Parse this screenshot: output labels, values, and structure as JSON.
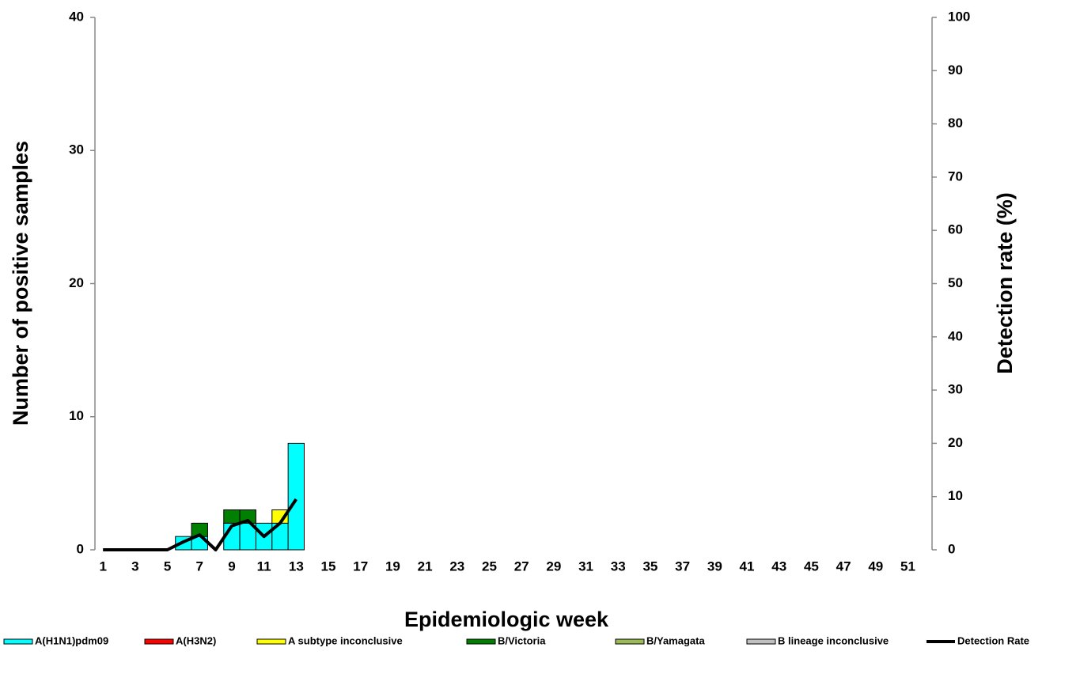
{
  "chart_data": {
    "type": "bar",
    "stacked": true,
    "xlabel": "Epidemiologic week",
    "ylabel": "Number of positive samples",
    "y2label": "Detection rate (%)",
    "categories": [
      1,
      null,
      3,
      null,
      5,
      null,
      7,
      null,
      9,
      null,
      11,
      null,
      13,
      null,
      15,
      null,
      17,
      null,
      19,
      null,
      21,
      null,
      23,
      null,
      25,
      null,
      27,
      null,
      29,
      null,
      31,
      null,
      33,
      null,
      35,
      null,
      37,
      null,
      39,
      null,
      41,
      null,
      43,
      null,
      45,
      null,
      47,
      null,
      49,
      null,
      51,
      null
    ],
    "ylim": [
      0,
      40
    ],
    "yticks": [
      0,
      10,
      20,
      30,
      40
    ],
    "y2lim": [
      0,
      100
    ],
    "y2ticks": [
      0,
      10,
      20,
      30,
      40,
      50,
      60,
      70,
      80,
      90,
      100
    ],
    "series": [
      {
        "name": "A(H1N1)pdm09",
        "type": "bar",
        "color": "#00ffff",
        "values": [
          0,
          0,
          0,
          0,
          0,
          1,
          1,
          0,
          2,
          2,
          2,
          2,
          8,
          null,
          null,
          null,
          null,
          null,
          null,
          null,
          null,
          null,
          null,
          null,
          null,
          null,
          null,
          null,
          null,
          null,
          null,
          null,
          null,
          null,
          null,
          null,
          null,
          null,
          null,
          null,
          null,
          null,
          null,
          null,
          null,
          null,
          null,
          null,
          null,
          null,
          null,
          null
        ]
      },
      {
        "name": "A(H3N2)",
        "type": "bar",
        "color": "#ff0000",
        "values": [
          0,
          0,
          0,
          0,
          0,
          0,
          0,
          0,
          0,
          0,
          0,
          0,
          0,
          null,
          null,
          null,
          null,
          null,
          null,
          null,
          null,
          null,
          null,
          null,
          null,
          null,
          null,
          null,
          null,
          null,
          null,
          null,
          null,
          null,
          null,
          null,
          null,
          null,
          null,
          null,
          null,
          null,
          null,
          null,
          null,
          null,
          null,
          null,
          null,
          null,
          null,
          null
        ]
      },
      {
        "name": "A subtype inconclusive",
        "type": "bar",
        "color": "#ffff00",
        "values": [
          0,
          0,
          0,
          0,
          0,
          0,
          0,
          0,
          0,
          0,
          0,
          1,
          0,
          null,
          null,
          null,
          null,
          null,
          null,
          null,
          null,
          null,
          null,
          null,
          null,
          null,
          null,
          null,
          null,
          null,
          null,
          null,
          null,
          null,
          null,
          null,
          null,
          null,
          null,
          null,
          null,
          null,
          null,
          null,
          null,
          null,
          null,
          null,
          null,
          null,
          null,
          null
        ]
      },
      {
        "name": "B/Victoria",
        "type": "bar",
        "color": "#008000",
        "values": [
          0,
          0,
          0,
          0,
          0,
          0,
          1,
          0,
          1,
          1,
          0,
          0,
          0,
          null,
          null,
          null,
          null,
          null,
          null,
          null,
          null,
          null,
          null,
          null,
          null,
          null,
          null,
          null,
          null,
          null,
          null,
          null,
          null,
          null,
          null,
          null,
          null,
          null,
          null,
          null,
          null,
          null,
          null,
          null,
          null,
          null,
          null,
          null,
          null,
          null,
          null,
          null
        ]
      },
      {
        "name": "B/Yamagata",
        "type": "bar",
        "color": "#9bbb59",
        "values": [
          0,
          0,
          0,
          0,
          0,
          0,
          0,
          0,
          0,
          0,
          0,
          0,
          0,
          null,
          null,
          null,
          null,
          null,
          null,
          null,
          null,
          null,
          null,
          null,
          null,
          null,
          null,
          null,
          null,
          null,
          null,
          null,
          null,
          null,
          null,
          null,
          null,
          null,
          null,
          null,
          null,
          null,
          null,
          null,
          null,
          null,
          null,
          null,
          null,
          null,
          null,
          null
        ]
      },
      {
        "name": "B lineage inconclusive",
        "type": "bar",
        "color": "#c0c0c0",
        "values": [
          0,
          0,
          0,
          0,
          0,
          0,
          0,
          0,
          0,
          0,
          0,
          0,
          0,
          null,
          null,
          null,
          null,
          null,
          null,
          null,
          null,
          null,
          null,
          null,
          null,
          null,
          null,
          null,
          null,
          null,
          null,
          null,
          null,
          null,
          null,
          null,
          null,
          null,
          null,
          null,
          null,
          null,
          null,
          null,
          null,
          null,
          null,
          null,
          null,
          null,
          null,
          null
        ]
      },
      {
        "name": "Detection Rate",
        "type": "line",
        "axis": "y2",
        "color": "#000000",
        "values": [
          0,
          0,
          0,
          0,
          0,
          1.5,
          2.8,
          0,
          4.5,
          5.5,
          2.5,
          5,
          9.5,
          null,
          null,
          null,
          null,
          null,
          null,
          null,
          null,
          null,
          null,
          null,
          null,
          null,
          null,
          null,
          null,
          null,
          null,
          null,
          null,
          null,
          null,
          null,
          null,
          null,
          null,
          null,
          null,
          null,
          null,
          null,
          null,
          null,
          null,
          null,
          null,
          null,
          null,
          null
        ]
      }
    ]
  }
}
